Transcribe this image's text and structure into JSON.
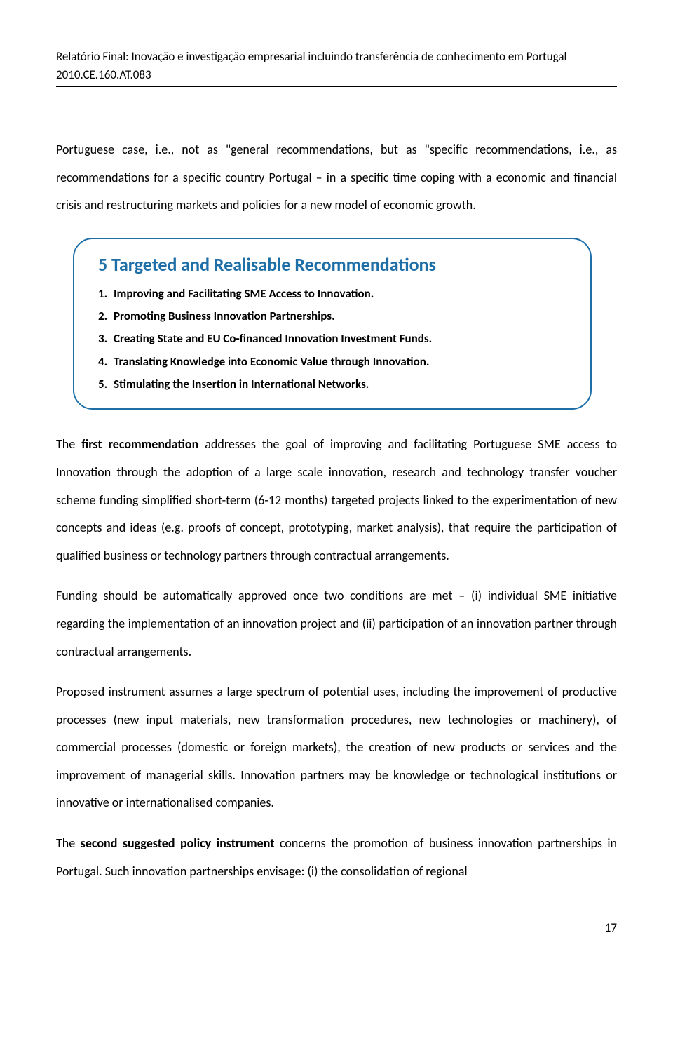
{
  "header": {
    "line1": "Relatório Final: Inovação e investigação empresarial incluindo transferência de conhecimento em Portugal",
    "line2": "2010.CE.160.AT.083"
  },
  "intro_paragraph": {
    "pre": "Portuguese case, i.e., not as \"general recommendations, but as \"specific recommendations, i.e., as recommendations for a specific country Portugal – in a specific time coping with a economic and financial crisis and restructuring markets and policies for a new model of economic growth."
  },
  "box": {
    "title": "5 Targeted and Realisable Recommendations",
    "title_color": "#1e6fa8",
    "border_color": "#1e6fa8",
    "items": [
      {
        "n": "1.",
        "text": "Improving and Facilitating SME Access to Innovation."
      },
      {
        "n": "2.",
        "text": "Promoting Business Innovation Partnerships."
      },
      {
        "n": "3.",
        "text": "Creating State and EU Co-financed Innovation Investment Funds."
      },
      {
        "n": "4.",
        "text": "Translating Knowledge into Economic Value through Innovation."
      },
      {
        "n": "5.",
        "text": "Stimulating the Insertion in International Networks."
      }
    ]
  },
  "p1": {
    "pre": "The ",
    "bold": "first recommendation",
    "post": " addresses the goal of improving and facilitating Portuguese SME access to Innovation through the adoption of a large scale innovation, research and technology transfer voucher scheme funding simplified short-term (6-12 months) targeted projects linked to the experimentation of new concepts and ideas (e.g. proofs of concept, prototyping, market analysis), that require the participation of qualified business or technology partners through contractual arrangements."
  },
  "p2": "Funding should be automatically approved once two conditions are met – (i) individual SME initiative regarding the implementation of an innovation project and (ii) participation of an innovation partner through contractual arrangements.",
  "p3": "Proposed instrument assumes a large spectrum of potential uses, including the improvement of productive processes (new input materials, new transformation procedures, new technologies or machinery), of commercial processes (domestic or foreign markets), the creation of new products or services and the improvement of managerial skills. Innovation partners may be knowledge or technological institutions or innovative or internationalised companies.",
  "p4": {
    "pre": "The ",
    "bold": "second suggested policy instrument",
    "post": " concerns the promotion of business innovation partnerships in Portugal. Such innovation partnerships envisage: (i) the consolidation of regional"
  },
  "page_number": "17"
}
